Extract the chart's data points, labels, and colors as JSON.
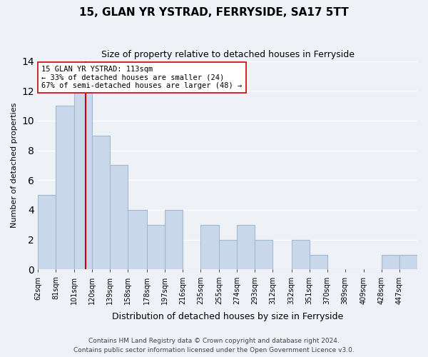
{
  "title": "15, GLAN YR YSTRAD, FERRYSIDE, SA17 5TT",
  "subtitle": "Size of property relative to detached houses in Ferryside",
  "xlabel": "Distribution of detached houses by size in Ferryside",
  "ylabel": "Number of detached properties",
  "bin_labels": [
    "62sqm",
    "81sqm",
    "101sqm",
    "120sqm",
    "139sqm",
    "158sqm",
    "178sqm",
    "197sqm",
    "216sqm",
    "235sqm",
    "255sqm",
    "274sqm",
    "293sqm",
    "312sqm",
    "332sqm",
    "351sqm",
    "370sqm",
    "389sqm",
    "409sqm",
    "428sqm",
    "447sqm"
  ],
  "counts": [
    5,
    11,
    12,
    9,
    7,
    4,
    3,
    4,
    0,
    3,
    2,
    3,
    2,
    0,
    2,
    1,
    0,
    0,
    0,
    1,
    1
  ],
  "bin_edges": [
    62,
    81,
    101,
    120,
    139,
    158,
    178,
    197,
    216,
    235,
    255,
    274,
    293,
    312,
    332,
    351,
    370,
    389,
    409,
    428,
    447,
    466
  ],
  "bar_color": "#c8d8ea",
  "bar_edge_color": "#a0b8d0",
  "property_line_x": 113,
  "property_line_color": "#cc0000",
  "annotation_line1": "15 GLAN YR YSTRAD: 113sqm",
  "annotation_line2": "← 33% of detached houses are smaller (24)",
  "annotation_line3": "67% of semi-detached houses are larger (48) →",
  "annotation_box_color": "white",
  "annotation_box_edge_color": "#cc0000",
  "ylim": [
    0,
    14
  ],
  "yticks": [
    0,
    2,
    4,
    6,
    8,
    10,
    12,
    14
  ],
  "footer": "Contains HM Land Registry data © Crown copyright and database right 2024.\nContains public sector information licensed under the Open Government Licence v3.0.",
  "background_color": "#eef2f7"
}
